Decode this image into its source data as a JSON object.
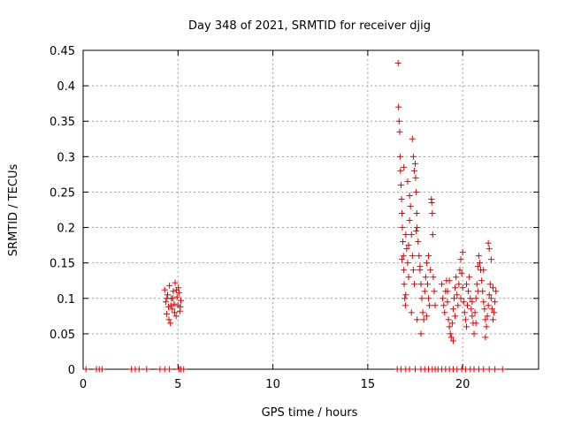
{
  "chart_data": {
    "type": "scatter",
    "title": "Day 348 of 2021, SRMTID for receiver djig",
    "xlabel": "GPS time / hours",
    "ylabel": "SRMTID / TECUs",
    "xlim": [
      0,
      24
    ],
    "ylim": [
      0,
      0.45
    ],
    "xticks": [
      0,
      5,
      10,
      15,
      20
    ],
    "yticks": [
      0,
      0.05,
      0.1,
      0.15,
      0.2,
      0.25,
      0.3,
      0.35,
      0.4,
      0.45
    ],
    "xtick_labels": [
      "0",
      "5",
      "10",
      "15",
      "20"
    ],
    "ytick_labels": [
      "0",
      "0.05",
      "0.1",
      "0.15",
      "0.2",
      "0.25",
      "0.3",
      "0.35",
      "0.4",
      "0.45"
    ],
    "grid": true,
    "marker": "+",
    "color": "#e00000",
    "series": [
      {
        "name": "SRMTID",
        "points": [
          [
            0.15,
            0
          ],
          [
            0.7,
            0
          ],
          [
            0.85,
            0
          ],
          [
            1.0,
            0
          ],
          [
            2.55,
            0
          ],
          [
            2.75,
            0
          ],
          [
            2.95,
            0
          ],
          [
            3.35,
            0
          ],
          [
            4.05,
            0
          ],
          [
            4.3,
            0
          ],
          [
            4.55,
            0
          ],
          [
            5.05,
            0
          ],
          [
            5.15,
            0
          ],
          [
            5.3,
            0
          ],
          [
            4.3,
            0.112
          ],
          [
            4.35,
            0.095
          ],
          [
            4.4,
            0.078
          ],
          [
            4.45,
            0.105
          ],
          [
            4.5,
            0.088
          ],
          [
            4.55,
            0.118
          ],
          [
            4.6,
            0.065
          ],
          [
            4.65,
            0.1
          ],
          [
            4.7,
            0.085
          ],
          [
            4.75,
            0.11
          ],
          [
            4.8,
            0.092
          ],
          [
            4.85,
            0.122
          ],
          [
            4.9,
            0.075
          ],
          [
            4.95,
            0.102
          ],
          [
            5.0,
            0.09
          ],
          [
            5.05,
            0.108
          ],
          [
            5.1,
            0.082
          ],
          [
            5.15,
            0.097
          ],
          [
            4.42,
            0.1
          ],
          [
            4.62,
            0.09
          ],
          [
            4.82,
            0.08
          ],
          [
            5.02,
            0.115
          ],
          [
            4.52,
            0.07
          ],
          [
            4.72,
            0.1
          ],
          [
            4.92,
            0.112
          ],
          [
            5.12,
            0.088
          ],
          [
            16.55,
            0
          ],
          [
            16.75,
            0
          ],
          [
            17.0,
            0
          ],
          [
            17.2,
            0
          ],
          [
            17.5,
            0
          ],
          [
            17.8,
            0
          ],
          [
            18.0,
            0
          ],
          [
            18.2,
            0
          ],
          [
            18.4,
            0
          ],
          [
            18.55,
            0
          ],
          [
            18.7,
            0
          ],
          [
            18.9,
            0
          ],
          [
            19.1,
            0
          ],
          [
            19.3,
            0
          ],
          [
            19.5,
            0
          ],
          [
            19.7,
            0
          ],
          [
            19.95,
            0
          ],
          [
            20.15,
            0
          ],
          [
            20.4,
            0
          ],
          [
            20.6,
            0
          ],
          [
            20.85,
            0
          ],
          [
            21.1,
            0
          ],
          [
            21.4,
            0
          ],
          [
            21.7,
            0
          ],
          [
            22.1,
            0
          ],
          [
            16.6,
            0.432
          ],
          [
            16.62,
            0.37
          ],
          [
            16.65,
            0.35
          ],
          [
            16.68,
            0.335
          ],
          [
            16.7,
            0.3
          ],
          [
            16.72,
            0.28
          ],
          [
            16.75,
            0.26
          ],
          [
            16.78,
            0.24
          ],
          [
            16.8,
            0.22
          ],
          [
            16.82,
            0.2
          ],
          [
            16.85,
            0.18
          ],
          [
            16.88,
            0.16
          ],
          [
            16.9,
            0.14
          ],
          [
            16.92,
            0.12
          ],
          [
            16.95,
            0.1
          ],
          [
            16.98,
            0.09
          ],
          [
            17.0,
            0.19
          ],
          [
            17.05,
            0.17
          ],
          [
            17.1,
            0.15
          ],
          [
            17.15,
            0.13
          ],
          [
            17.2,
            0.21
          ],
          [
            17.25,
            0.23
          ],
          [
            17.3,
            0.19
          ],
          [
            17.35,
            0.16
          ],
          [
            17.4,
            0.14
          ],
          [
            17.45,
            0.12
          ],
          [
            17.5,
            0.29
          ],
          [
            17.52,
            0.27
          ],
          [
            17.55,
            0.25
          ],
          [
            17.58,
            0.22
          ],
          [
            17.6,
            0.2
          ],
          [
            17.65,
            0.18
          ],
          [
            17.7,
            0.16
          ],
          [
            17.75,
            0.14
          ],
          [
            17.8,
            0.12
          ],
          [
            17.85,
            0.1
          ],
          [
            17.9,
            0.08
          ],
          [
            17.95,
            0.07
          ],
          [
            18.0,
            0.11
          ],
          [
            18.05,
            0.13
          ],
          [
            18.1,
            0.15
          ],
          [
            18.15,
            0.12
          ],
          [
            18.2,
            0.1
          ],
          [
            18.25,
            0.09
          ],
          [
            18.3,
            0.14
          ],
          [
            18.35,
            0.24
          ],
          [
            18.37,
            0.235
          ],
          [
            18.4,
            0.22
          ],
          [
            18.42,
            0.19
          ],
          [
            18.45,
            0.13
          ],
          [
            18.5,
            0.11
          ],
          [
            18.55,
            0.09
          ],
          [
            17.35,
            0.325
          ],
          [
            17.4,
            0.3
          ],
          [
            17.45,
            0.28
          ],
          [
            17.1,
            0.265
          ],
          [
            17.2,
            0.245
          ],
          [
            16.9,
            0.285
          ],
          [
            17.8,
            0.05
          ],
          [
            17.6,
            0.07
          ],
          [
            17.3,
            0.08
          ],
          [
            17.0,
            0.105
          ],
          [
            16.8,
            0.155
          ],
          [
            17.15,
            0.175
          ],
          [
            17.55,
            0.195
          ],
          [
            17.75,
            0.145
          ],
          [
            18.1,
            0.075
          ],
          [
            18.2,
            0.16
          ],
          [
            18.9,
            0.12
          ],
          [
            18.95,
            0.1
          ],
          [
            19.0,
            0.09
          ],
          [
            19.05,
            0.08
          ],
          [
            19.1,
            0.11
          ],
          [
            19.15,
            0.125
          ],
          [
            19.2,
            0.095
          ],
          [
            19.25,
            0.07
          ],
          [
            19.3,
            0.06
          ],
          [
            19.35,
            0.05
          ],
          [
            19.4,
            0.045
          ],
          [
            19.45,
            0.065
          ],
          [
            19.5,
            0.085
          ],
          [
            19.55,
            0.1
          ],
          [
            19.6,
            0.115
          ],
          [
            19.65,
            0.13
          ],
          [
            19.7,
            0.105
          ],
          [
            19.75,
            0.09
          ],
          [
            19.8,
            0.12
          ],
          [
            19.85,
            0.14
          ],
          [
            19.9,
            0.155
          ],
          [
            19.95,
            0.135
          ],
          [
            20.0,
            0.115
          ],
          [
            20.05,
            0.095
          ],
          [
            20.1,
            0.08
          ],
          [
            20.15,
            0.07
          ],
          [
            20.2,
            0.06
          ],
          [
            20.25,
            0.09
          ],
          [
            20.3,
            0.11
          ],
          [
            20.35,
            0.13
          ],
          [
            20.4,
            0.1
          ],
          [
            20.45,
            0.085
          ],
          [
            20.5,
            0.075
          ],
          [
            20.55,
            0.065
          ],
          [
            20.6,
            0.05
          ],
          [
            20.65,
            0.08
          ],
          [
            20.7,
            0.1
          ],
          [
            20.75,
            0.12
          ],
          [
            20.8,
            0.145
          ],
          [
            20.85,
            0.16
          ],
          [
            20.9,
            0.15
          ],
          [
            20.95,
            0.14
          ],
          [
            21.0,
            0.125
          ],
          [
            21.05,
            0.11
          ],
          [
            21.1,
            0.095
          ],
          [
            21.15,
            0.085
          ],
          [
            21.2,
            0.07
          ],
          [
            21.25,
            0.06
          ],
          [
            21.3,
            0.075
          ],
          [
            21.35,
            0.09
          ],
          [
            21.4,
            0.105
          ],
          [
            21.45,
            0.12
          ],
          [
            21.5,
            0.1
          ],
          [
            21.55,
            0.085
          ],
          [
            21.6,
            0.07
          ],
          [
            21.65,
            0.08
          ],
          [
            21.7,
            0.095
          ],
          [
            21.75,
            0.11
          ],
          [
            19.3,
            0.125
          ],
          [
            19.6,
            0.075
          ],
          [
            19.9,
            0.1
          ],
          [
            20.2,
            0.12
          ],
          [
            20.5,
            0.095
          ],
          [
            20.8,
            0.11
          ],
          [
            21.1,
            0.14
          ],
          [
            21.4,
            0.17
          ],
          [
            21.35,
            0.178
          ],
          [
            21.5,
            0.155
          ],
          [
            20.0,
            0.165
          ],
          [
            19.2,
            0.11
          ],
          [
            20.7,
            0.065
          ],
          [
            21.6,
            0.115
          ],
          [
            21.2,
            0.045
          ],
          [
            19.5,
            0.04
          ]
        ]
      }
    ]
  }
}
